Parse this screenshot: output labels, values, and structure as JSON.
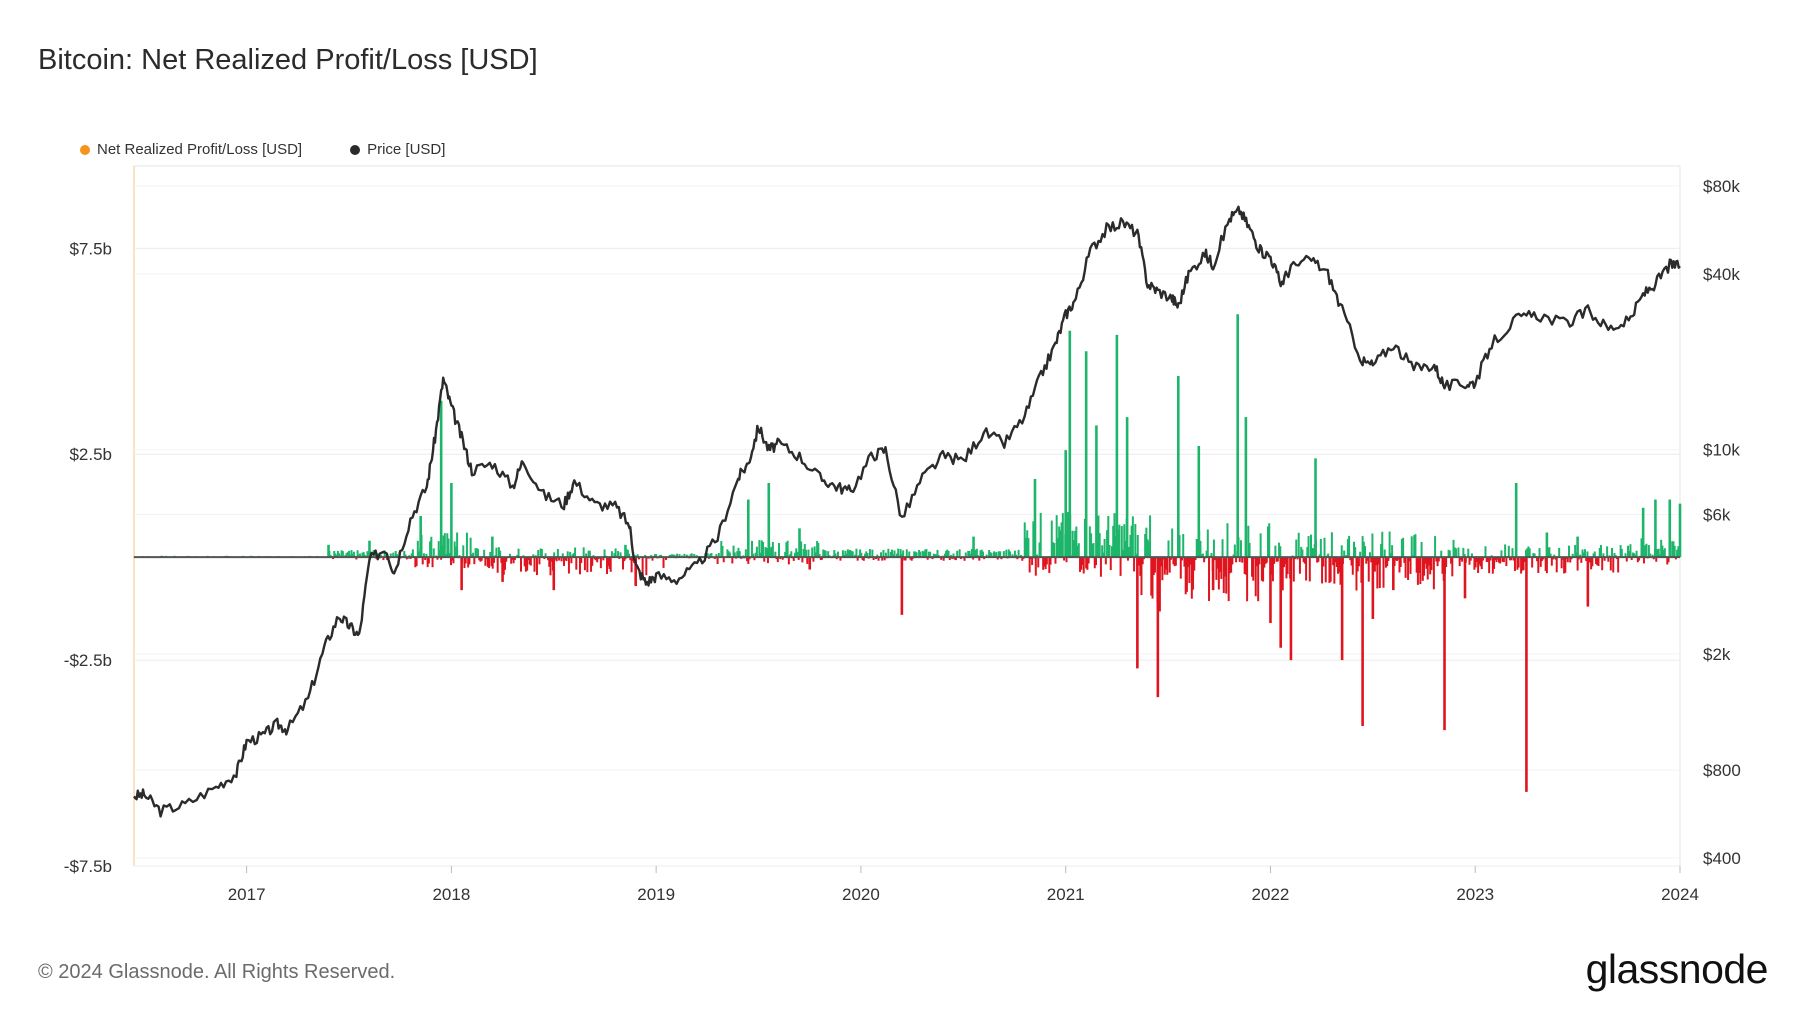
{
  "title": "Bitcoin: Net Realized Profit/Loss [USD]",
  "footer": {
    "copyright": "© 2024 Glassnode. All Rights Reserved.",
    "brand": "glassnode"
  },
  "colors": {
    "price": "#2b2b2b",
    "profit": "#1db56a",
    "loss": "#e0141e",
    "legend_profit_loss": "#f7931a",
    "zero_line": "#555555"
  },
  "chart_data": {
    "type": "bar",
    "title": "Bitcoin: Net Realized Profit/Loss [USD]",
    "legend": [
      {
        "name": "Net Realized Profit/Loss [USD]",
        "color": "#f7931a"
      },
      {
        "name": "Price [USD]",
        "color": "#2b2b2b"
      }
    ],
    "x_range": [
      2016.45,
      2024.0
    ],
    "x_ticks": [
      "2017",
      "2018",
      "2019",
      "2020",
      "2021",
      "2022",
      "2023",
      "2024"
    ],
    "x_tick_values": [
      2017,
      2018,
      2019,
      2020,
      2021,
      2022,
      2023,
      2024
    ],
    "left_axis": {
      "ticks": [
        "$7.5b",
        "$2.5b",
        "-$2.5b",
        "-$7.5b"
      ],
      "tick_values": [
        7.5,
        2.5,
        -2.5,
        -7.5
      ],
      "range": [
        -7.5,
        9.5
      ],
      "unit": "billion USD"
    },
    "right_axis": {
      "scale": "log",
      "ticks": [
        "$80k",
        "$40k",
        "$10k",
        "$6k",
        "$2k",
        "$800",
        "$400"
      ],
      "tick_values": [
        80000,
        40000,
        10000,
        6000,
        2000,
        800,
        400
      ],
      "range": [
        400,
        80000
      ]
    },
    "series": [
      {
        "name": "Price [USD]",
        "type": "line",
        "axis": "right",
        "points": [
          [
            2016.45,
            650
          ],
          [
            2016.5,
            660
          ],
          [
            2016.58,
            580
          ],
          [
            2016.7,
            610
          ],
          [
            2016.85,
            700
          ],
          [
            2016.95,
            780
          ],
          [
            2017.0,
            1000
          ],
          [
            2017.08,
            1050
          ],
          [
            2017.15,
            1150
          ],
          [
            2017.2,
            1100
          ],
          [
            2017.3,
            1400
          ],
          [
            2017.38,
            2100
          ],
          [
            2017.45,
            2700
          ],
          [
            2017.5,
            2500
          ],
          [
            2017.55,
            2300
          ],
          [
            2017.6,
            4200
          ],
          [
            2017.68,
            4600
          ],
          [
            2017.72,
            3800
          ],
          [
            2017.8,
            5800
          ],
          [
            2017.88,
            7500
          ],
          [
            2017.92,
            11000
          ],
          [
            2017.96,
            17500
          ],
          [
            2018.0,
            14000
          ],
          [
            2018.05,
            11000
          ],
          [
            2018.1,
            8500
          ],
          [
            2018.2,
            9000
          ],
          [
            2018.3,
            7500
          ],
          [
            2018.35,
            9200
          ],
          [
            2018.45,
            7000
          ],
          [
            2018.55,
            6500
          ],
          [
            2018.6,
            7800
          ],
          [
            2018.7,
            6500
          ],
          [
            2018.8,
            6400
          ],
          [
            2018.87,
            5500
          ],
          [
            2018.9,
            4000
          ],
          [
            2018.95,
            3500
          ],
          [
            2019.0,
            3700
          ],
          [
            2019.1,
            3600
          ],
          [
            2019.2,
            4000
          ],
          [
            2019.3,
            5000
          ],
          [
            2019.4,
            8000
          ],
          [
            2019.45,
            9000
          ],
          [
            2019.5,
            12000
          ],
          [
            2019.55,
            10000
          ],
          [
            2019.6,
            10500
          ],
          [
            2019.7,
            9500
          ],
          [
            2019.8,
            8000
          ],
          [
            2019.88,
            7500
          ],
          [
            2019.95,
            7200
          ],
          [
            2020.05,
            9500
          ],
          [
            2020.12,
            10000
          ],
          [
            2020.2,
            5800
          ],
          [
            2020.3,
            8000
          ],
          [
            2020.4,
            9500
          ],
          [
            2020.5,
            9200
          ],
          [
            2020.6,
            11500
          ],
          [
            2020.7,
            10500
          ],
          [
            2020.8,
            13000
          ],
          [
            2020.88,
            18000
          ],
          [
            2020.95,
            23000
          ],
          [
            2021.0,
            29000
          ],
          [
            2021.05,
            33000
          ],
          [
            2021.12,
            48000
          ],
          [
            2021.2,
            57000
          ],
          [
            2021.28,
            60000
          ],
          [
            2021.35,
            55000
          ],
          [
            2021.4,
            37000
          ],
          [
            2021.45,
            35000
          ],
          [
            2021.52,
            33000
          ],
          [
            2021.55,
            31000
          ],
          [
            2021.6,
            40000
          ],
          [
            2021.68,
            47000
          ],
          [
            2021.72,
            43000
          ],
          [
            2021.8,
            62000
          ],
          [
            2021.85,
            66000
          ],
          [
            2021.9,
            57000
          ],
          [
            2021.95,
            48000
          ],
          [
            2022.0,
            46000
          ],
          [
            2022.05,
            37000
          ],
          [
            2022.1,
            42000
          ],
          [
            2022.2,
            45000
          ],
          [
            2022.28,
            40000
          ],
          [
            2022.35,
            30000
          ],
          [
            2022.45,
            20000
          ],
          [
            2022.5,
            19500
          ],
          [
            2022.6,
            23000
          ],
          [
            2022.7,
            19000
          ],
          [
            2022.8,
            19500
          ],
          [
            2022.85,
            16500
          ],
          [
            2022.95,
            16800
          ],
          [
            2023.0,
            17000
          ],
          [
            2023.08,
            23000
          ],
          [
            2023.2,
            28000
          ],
          [
            2023.3,
            29000
          ],
          [
            2023.45,
            27000
          ],
          [
            2023.55,
            30000
          ],
          [
            2023.65,
            26000
          ],
          [
            2023.75,
            27500
          ],
          [
            2023.82,
            34000
          ],
          [
            2023.88,
            37000
          ],
          [
            2023.95,
            43000
          ],
          [
            2024.0,
            42500
          ]
        ]
      },
      {
        "name": "Net Realized Profit/Loss [USD]",
        "type": "bar",
        "axis": "left",
        "spikes_billion_usd": [
          [
            2017.4,
            0.3
          ],
          [
            2017.6,
            0.4
          ],
          [
            2017.85,
            1.0
          ],
          [
            2017.95,
            3.8
          ],
          [
            2018.0,
            1.8
          ],
          [
            2018.05,
            -0.8
          ],
          [
            2018.2,
            0.5
          ],
          [
            2018.25,
            -0.6
          ],
          [
            2018.5,
            -0.8
          ],
          [
            2018.85,
            0.3
          ],
          [
            2018.9,
            -0.7
          ],
          [
            2019.45,
            1.4
          ],
          [
            2019.55,
            1.8
          ],
          [
            2019.7,
            0.7
          ],
          [
            2019.75,
            -0.3
          ],
          [
            2020.2,
            -1.4
          ],
          [
            2020.55,
            0.5
          ],
          [
            2020.85,
            1.9
          ],
          [
            2021.0,
            2.6
          ],
          [
            2021.02,
            5.5
          ],
          [
            2021.1,
            5.0
          ],
          [
            2021.15,
            3.2
          ],
          [
            2021.25,
            5.4
          ],
          [
            2021.3,
            3.4
          ],
          [
            2021.35,
            -2.7
          ],
          [
            2021.45,
            -3.4
          ],
          [
            2021.55,
            4.4
          ],
          [
            2021.65,
            2.7
          ],
          [
            2021.72,
            -0.8
          ],
          [
            2021.84,
            5.9
          ],
          [
            2021.88,
            3.4
          ],
          [
            2022.0,
            -1.6
          ],
          [
            2022.05,
            -2.2
          ],
          [
            2022.1,
            -2.5
          ],
          [
            2022.22,
            2.4
          ],
          [
            2022.35,
            -2.5
          ],
          [
            2022.45,
            -4.1
          ],
          [
            2022.5,
            -1.5
          ],
          [
            2022.6,
            -0.8
          ],
          [
            2022.85,
            -4.2
          ],
          [
            2022.95,
            -1.0
          ],
          [
            2023.2,
            1.8
          ],
          [
            2023.25,
            -5.7
          ],
          [
            2023.35,
            0.6
          ],
          [
            2023.5,
            0.5
          ],
          [
            2023.55,
            -1.2
          ],
          [
            2023.82,
            1.2
          ],
          [
            2023.88,
            1.4
          ],
          [
            2023.95,
            1.4
          ],
          [
            2024.0,
            1.3
          ]
        ]
      }
    ]
  }
}
